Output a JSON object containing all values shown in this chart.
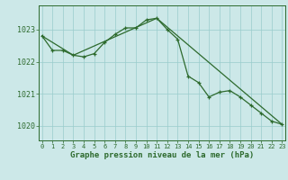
{
  "line1_x": [
    0,
    1,
    2,
    3,
    4,
    5,
    6,
    7,
    8,
    9,
    10,
    11,
    12,
    13,
    14,
    15,
    16,
    17,
    18,
    19,
    20,
    21,
    22,
    23
  ],
  "line1_y": [
    1022.8,
    1022.35,
    1022.35,
    1022.2,
    1022.15,
    1022.25,
    1022.6,
    1022.85,
    1023.05,
    1023.05,
    1023.3,
    1023.35,
    1023.0,
    1022.7,
    1021.55,
    1021.35,
    1020.9,
    1021.05,
    1021.1,
    1020.9,
    1020.65,
    1020.4,
    1020.15,
    1020.05
  ],
  "line2_x": [
    0,
    3,
    11,
    23
  ],
  "line2_y": [
    1022.8,
    1022.2,
    1023.35,
    1020.05
  ],
  "line_color": "#2d6a2d",
  "bg_color": "#cce8e8",
  "plot_bg": "#cce8e8",
  "grid_color": "#99cccc",
  "ylabel_ticks": [
    1020,
    1021,
    1022,
    1023
  ],
  "xlim": [
    -0.3,
    23.3
  ],
  "ylim": [
    1019.55,
    1023.75
  ],
  "xlabel": "Graphe pression niveau de la mer (hPa)",
  "xlabel_fontsize": 6.5,
  "ytick_fontsize": 6.0,
  "xtick_fontsize": 5.0
}
